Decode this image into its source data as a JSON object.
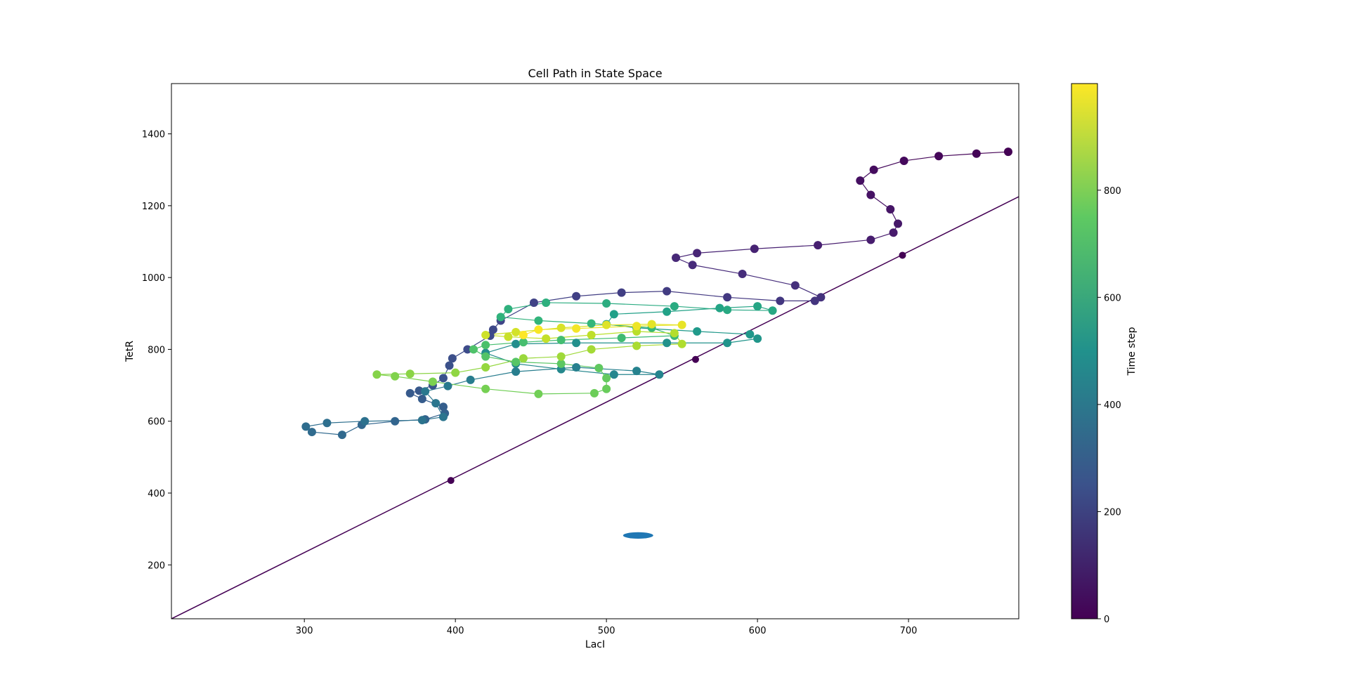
{
  "chart_data": {
    "type": "scatter",
    "title": "Cell Path in State Space",
    "xlabel": "LacI",
    "ylabel": "TetR",
    "xlim": [
      212,
      773
    ],
    "ylim": [
      50,
      1540
    ],
    "xticks": [
      300,
      400,
      500,
      600,
      700
    ],
    "yticks": [
      200,
      400,
      600,
      800,
      1000,
      1200,
      1400
    ],
    "grid": false,
    "colormap": "viridis",
    "colorbar": {
      "label": "Time step",
      "range": [
        0,
        999
      ],
      "ticks": [
        0,
        200,
        400,
        600,
        800
      ]
    },
    "line": {
      "name": "",
      "points": [
        [
          212,
          50
        ],
        [
          773,
          1225
        ]
      ],
      "color": "#440154",
      "markers": [
        [
          397,
          435
        ],
        [
          559,
          772
        ],
        [
          696,
          1062
        ]
      ]
    },
    "ellipse": {
      "center": [
        521,
        282
      ],
      "width": 20,
      "height": 18,
      "color": "#1f77b4"
    },
    "trajectory": {
      "time_step_range": [
        0,
        999
      ],
      "points": [
        [
          766,
          1350
        ],
        [
          745,
          1345
        ],
        [
          720,
          1338
        ],
        [
          697,
          1325
        ],
        [
          677,
          1300
        ],
        [
          668,
          1270
        ],
        [
          675,
          1230
        ],
        [
          688,
          1190
        ],
        [
          693,
          1150
        ],
        [
          690,
          1125
        ],
        [
          675,
          1105
        ],
        [
          640,
          1090
        ],
        [
          598,
          1080
        ],
        [
          560,
          1068
        ],
        [
          546,
          1055
        ],
        [
          557,
          1035
        ],
        [
          590,
          1010
        ],
        [
          625,
          978
        ],
        [
          642,
          945
        ],
        [
          638,
          935
        ],
        [
          615,
          935
        ],
        [
          580,
          945
        ],
        [
          540,
          962
        ],
        [
          510,
          958
        ],
        [
          480,
          948
        ],
        [
          452,
          930
        ],
        [
          430,
          880
        ],
        [
          425,
          855
        ],
        [
          423,
          838
        ],
        [
          408,
          800
        ],
        [
          398,
          775
        ],
        [
          396,
          755
        ],
        [
          392,
          720
        ],
        [
          385,
          700
        ],
        [
          376,
          685
        ],
        [
          370,
          678
        ],
        [
          378,
          662
        ],
        [
          392,
          640
        ],
        [
          393,
          622
        ],
        [
          380,
          605
        ],
        [
          360,
          600
        ],
        [
          338,
          590
        ],
        [
          325,
          562
        ],
        [
          305,
          570
        ],
        [
          301,
          585
        ],
        [
          315,
          595
        ],
        [
          340,
          600
        ],
        [
          378,
          603
        ],
        [
          392,
          612
        ],
        [
          387,
          650
        ],
        [
          380,
          683
        ],
        [
          395,
          698
        ],
        [
          410,
          715
        ],
        [
          440,
          738
        ],
        [
          480,
          750
        ],
        [
          520,
          740
        ],
        [
          535,
          730
        ],
        [
          505,
          730
        ],
        [
          470,
          745
        ],
        [
          440,
          760
        ],
        [
          420,
          790
        ],
        [
          440,
          815
        ],
        [
          480,
          818
        ],
        [
          540,
          818
        ],
        [
          580,
          818
        ],
        [
          600,
          830
        ],
        [
          595,
          842
        ],
        [
          560,
          850
        ],
        [
          520,
          860
        ],
        [
          500,
          870
        ],
        [
          505,
          898
        ],
        [
          540,
          905
        ],
        [
          575,
          915
        ],
        [
          600,
          920
        ],
        [
          610,
          908
        ],
        [
          580,
          910
        ],
        [
          545,
          920
        ],
        [
          500,
          928
        ],
        [
          460,
          930
        ],
        [
          435,
          912
        ],
        [
          430,
          890
        ],
        [
          455,
          880
        ],
        [
          490,
          872
        ],
        [
          530,
          860
        ],
        [
          545,
          838
        ],
        [
          510,
          832
        ],
        [
          470,
          826
        ],
        [
          445,
          820
        ],
        [
          420,
          812
        ],
        [
          412,
          800
        ],
        [
          420,
          780
        ],
        [
          440,
          765
        ],
        [
          470,
          760
        ],
        [
          495,
          748
        ],
        [
          500,
          720
        ],
        [
          500,
          690
        ],
        [
          492,
          678
        ],
        [
          455,
          676
        ],
        [
          420,
          690
        ],
        [
          385,
          710
        ],
        [
          360,
          725
        ],
        [
          348,
          730
        ],
        [
          370,
          732
        ],
        [
          400,
          735
        ],
        [
          420,
          750
        ],
        [
          445,
          775
        ],
        [
          470,
          780
        ],
        [
          490,
          800
        ],
        [
          520,
          810
        ],
        [
          550,
          815
        ],
        [
          545,
          845
        ],
        [
          520,
          850
        ],
        [
          490,
          840
        ],
        [
          460,
          830
        ],
        [
          435,
          835
        ],
        [
          420,
          840
        ],
        [
          440,
          848
        ],
        [
          470,
          860
        ],
        [
          500,
          868
        ],
        [
          530,
          870
        ],
        [
          550,
          868
        ],
        [
          520,
          865
        ],
        [
          480,
          858
        ],
        [
          455,
          855
        ],
        [
          445,
          840
        ]
      ]
    }
  }
}
